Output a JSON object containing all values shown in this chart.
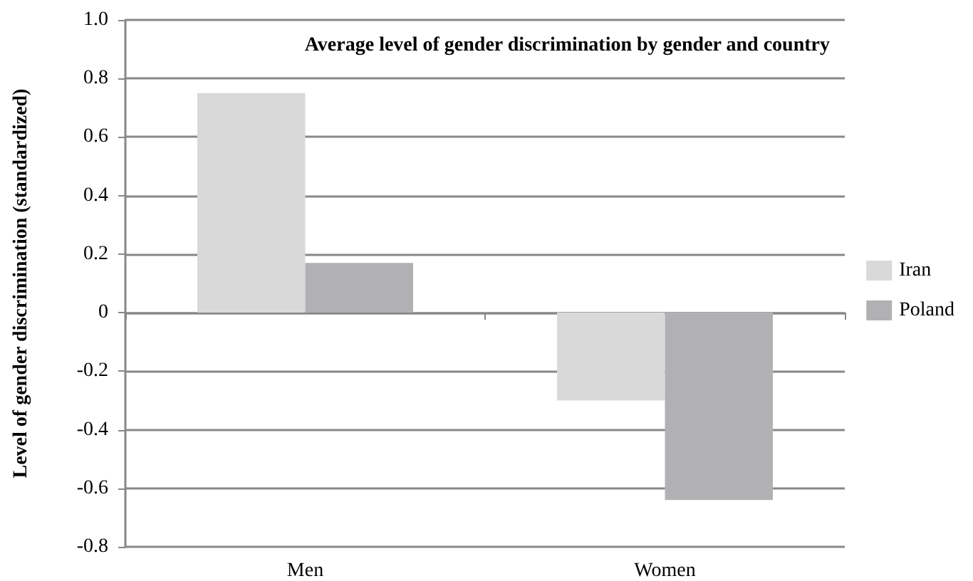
{
  "chart_data": {
    "type": "bar",
    "title": "Average level of gender discrimination by gender and country",
    "ylabel": "Level of gender discrimination (standardized)",
    "categories": [
      "Men",
      "Women"
    ],
    "series": [
      {
        "name": "Iran",
        "color": "#d9d9d9",
        "values": [
          0.75,
          -0.3
        ]
      },
      {
        "name": "Poland",
        "color": "#b1b1b3",
        "values": [
          0.17,
          -0.64
        ]
      }
    ],
    "ylim": [
      -0.8,
      1.0
    ],
    "yticks": [
      {
        "value": -0.8,
        "label": "-0.8"
      },
      {
        "value": -0.6,
        "label": "-0.6"
      },
      {
        "value": -0.4,
        "label": "-0.4"
      },
      {
        "value": -0.2,
        "label": "-0.2"
      },
      0,
      {
        "value": 0.2,
        "label": "0.2"
      },
      {
        "value": 0.4,
        "label": "0.4"
      },
      {
        "value": 0.6,
        "label": "0.6"
      },
      {
        "value": 0.8,
        "label": "0.8"
      },
      {
        "value": 1.0,
        "label": "1.0"
      }
    ],
    "grid": "y",
    "legend": "right"
  }
}
